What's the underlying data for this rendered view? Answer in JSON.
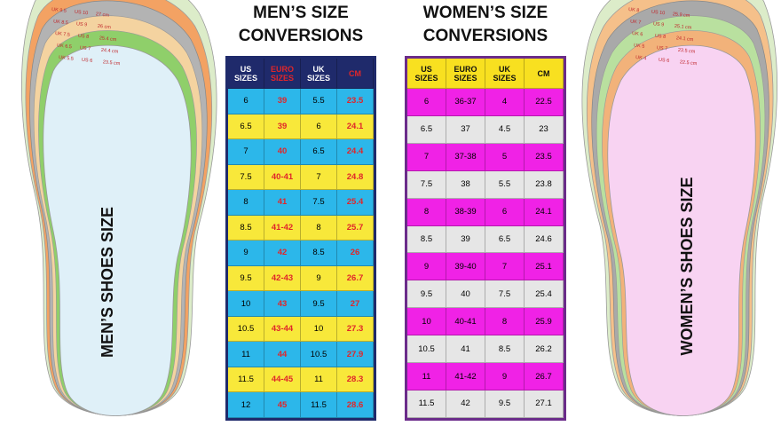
{
  "men": {
    "title": [
      "MEN’S SIZE",
      "CONVERSIONS"
    ],
    "side_label": "MEN’S SHOES SIZE",
    "insole_labels": [
      [
        "UK 9.5",
        "US 10",
        "27 cm"
      ],
      [
        "UK 8.5",
        "US 9",
        "26 cm"
      ],
      [
        "UK 7.5",
        "US 8",
        "25.4 cm"
      ],
      [
        "UK 6.5",
        "US 7",
        "24.4 cm"
      ],
      [
        "UK 5.5",
        "US 6",
        "23.5 cm"
      ]
    ],
    "table": {
      "header": [
        "US SIZES",
        "EURO SIZES",
        "UK SIZES",
        "CM"
      ],
      "rows": [
        [
          "6",
          "39",
          "5.5",
          "23.5"
        ],
        [
          "6.5",
          "39",
          "6",
          "24.1"
        ],
        [
          "7",
          "40",
          "6.5",
          "24.4"
        ],
        [
          "7.5",
          "40-41",
          "7",
          "24.8"
        ],
        [
          "8",
          "41",
          "7.5",
          "25.4"
        ],
        [
          "8.5",
          "41-42",
          "8",
          "25.7"
        ],
        [
          "9",
          "42",
          "8.5",
          "26"
        ],
        [
          "9.5",
          "42-43",
          "9",
          "26.7"
        ],
        [
          "10",
          "43",
          "9.5",
          "27"
        ],
        [
          "10.5",
          "43-44",
          "10",
          "27.3"
        ],
        [
          "11",
          "44",
          "10.5",
          "27.9"
        ],
        [
          "11.5",
          "44-45",
          "11",
          "28.3"
        ],
        [
          "12",
          "45",
          "11.5",
          "28.6"
        ]
      ]
    }
  },
  "women": {
    "title": [
      "WOMEN’S SIZE",
      "CONVERSIONS"
    ],
    "side_label": "WOMEN’S SHOES SIZE",
    "insole_labels": [
      [
        "UK 8",
        "US 10",
        "25.9 cm"
      ],
      [
        "UK 7",
        "US 9",
        "25.1 cm"
      ],
      [
        "UK 6",
        "US 8",
        "24.1 cm"
      ],
      [
        "UK 5",
        "US 7",
        "23.5 cm"
      ],
      [
        "UK 4",
        "US 6",
        "22.5 cm"
      ]
    ],
    "table": {
      "header": [
        "US SIZES",
        "EURO SIZES",
        "UK SIZES",
        "CM"
      ],
      "rows": [
        [
          "6",
          "36-37",
          "4",
          "22.5"
        ],
        [
          "6.5",
          "37",
          "4.5",
          "23"
        ],
        [
          "7",
          "37-38",
          "5",
          "23.5"
        ],
        [
          "7.5",
          "38",
          "5.5",
          "23.8"
        ],
        [
          "8",
          "38-39",
          "6",
          "24.1"
        ],
        [
          "8.5",
          "39",
          "6.5",
          "24.6"
        ],
        [
          "9",
          "39-40",
          "7",
          "25.1"
        ],
        [
          "9.5",
          "40",
          "7.5",
          "25.4"
        ],
        [
          "10",
          "40-41",
          "8",
          "25.9"
        ],
        [
          "10.5",
          "41",
          "8.5",
          "26.2"
        ],
        [
          "11",
          "41-42",
          "9",
          "26.7"
        ],
        [
          "11.5",
          "42",
          "9.5",
          "27.1"
        ]
      ]
    }
  }
}
